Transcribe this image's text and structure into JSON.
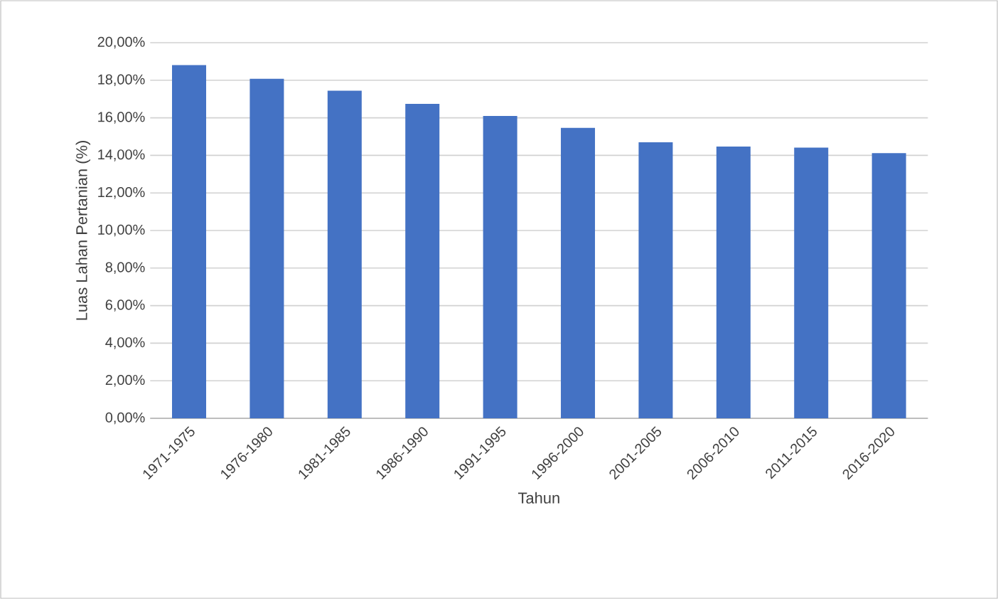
{
  "chart_data": {
    "type": "bar",
    "xlabel": "Tahun",
    "ylabel": "Luas Lahan Pertanian (%)",
    "categories": [
      "1971-1975",
      "1976-1980",
      "1981-1985",
      "1986-1990",
      "1991-1995",
      "1996-2000",
      "2001-2005",
      "2006-2010",
      "2011-2015",
      "2016-2020"
    ],
    "values": [
      18.81,
      18.08,
      17.44,
      16.74,
      16.1,
      15.46,
      14.7,
      14.47,
      14.41,
      14.12
    ],
    "color": "#4472c4",
    "ylim": [
      0,
      20
    ],
    "yticks": [
      {
        "value": 0,
        "label": "0,00%"
      },
      {
        "value": 2,
        "label": "2,00%"
      },
      {
        "value": 4,
        "label": "4,00%"
      },
      {
        "value": 6,
        "label": "6,00%"
      },
      {
        "value": 8,
        "label": "8,00%"
      },
      {
        "value": 10,
        "label": "10,00%"
      },
      {
        "value": 12,
        "label": "12,00%"
      },
      {
        "value": 14,
        "label": "14,00%"
      },
      {
        "value": 16,
        "label": "16,00%"
      },
      {
        "value": 18,
        "label": "18,00%"
      },
      {
        "value": 20,
        "label": "20,00%"
      }
    ],
    "grid": "y"
  }
}
